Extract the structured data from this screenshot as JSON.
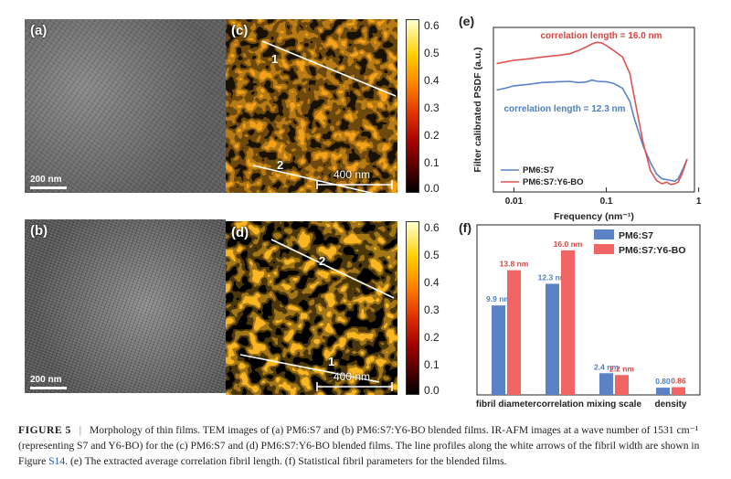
{
  "panels": {
    "a": {
      "label": "(a)",
      "scale": "200 nm"
    },
    "b": {
      "label": "(b)",
      "scale": "200 nm"
    },
    "c": {
      "label": "(c)",
      "line1": "1",
      "line2": "2",
      "scale": "400 nm"
    },
    "d": {
      "label": "(d)",
      "line1": "2",
      "line2": "1",
      "scale": "400 nm"
    },
    "e": {
      "label": "(e)"
    },
    "f": {
      "label": "(f)"
    }
  },
  "colorbar": {
    "ticks": [
      "0.6",
      "0.5",
      "0.4",
      "0.3",
      "0.2",
      "0.1",
      "0.0"
    ]
  },
  "colors": {
    "pm6s7": "#5b82c4",
    "pm6s7y6bo": "#e05252",
    "pm6s7_label": "#4f7fc2",
    "pm6s7y6bo_label": "#d9453f",
    "link": "#2454a6"
  },
  "chart_data": [
    {
      "type": "line",
      "panel": "(e)",
      "xlabel": "Frequency (nm⁻¹)",
      "ylabel": "Filter calibrated PSDF (a.u.)",
      "xscale": "log",
      "xlim": [
        0.006,
        0.9
      ],
      "xticks": [
        "0.01",
        "0.1",
        "1"
      ],
      "yticks": "none",
      "legend": "bottom-left",
      "annotations": [
        "correlation length = 16.0 nm",
        "correlation length = 12.3 nm"
      ],
      "series": [
        {
          "name": "PM6:S7",
          "color": "#5b82c4",
          "points": [
            [
              0.0065,
              0.62
            ],
            [
              0.008,
              0.63
            ],
            [
              0.01,
              0.645
            ],
            [
              0.015,
              0.655
            ],
            [
              0.02,
              0.665
            ],
            [
              0.03,
              0.67
            ],
            [
              0.04,
              0.672
            ],
            [
              0.05,
              0.665
            ],
            [
              0.06,
              0.668
            ],
            [
              0.07,
              0.68
            ],
            [
              0.08,
              0.672
            ],
            [
              0.1,
              0.67
            ],
            [
              0.12,
              0.66
            ],
            [
              0.15,
              0.63
            ],
            [
              0.18,
              0.55
            ],
            [
              0.2,
              0.45
            ],
            [
              0.25,
              0.28
            ],
            [
              0.3,
              0.18
            ],
            [
              0.35,
              0.11
            ],
            [
              0.4,
              0.08
            ],
            [
              0.45,
              0.075
            ],
            [
              0.5,
              0.07
            ],
            [
              0.55,
              0.065
            ],
            [
              0.6,
              0.08
            ],
            [
              0.65,
              0.12
            ],
            [
              0.7,
              0.16
            ],
            [
              0.75,
              0.2
            ]
          ]
        },
        {
          "name": "PM6:S7:Y6-BO",
          "color": "#e05252",
          "points": [
            [
              0.0065,
              0.78
            ],
            [
              0.008,
              0.79
            ],
            [
              0.01,
              0.8
            ],
            [
              0.015,
              0.81
            ],
            [
              0.02,
              0.82
            ],
            [
              0.03,
              0.83
            ],
            [
              0.04,
              0.84
            ],
            [
              0.05,
              0.86
            ],
            [
              0.06,
              0.88
            ],
            [
              0.07,
              0.9
            ],
            [
              0.08,
              0.91
            ],
            [
              0.09,
              0.905
            ],
            [
              0.1,
              0.89
            ],
            [
              0.12,
              0.86
            ],
            [
              0.15,
              0.82
            ],
            [
              0.18,
              0.72
            ],
            [
              0.2,
              0.58
            ],
            [
              0.25,
              0.3
            ],
            [
              0.3,
              0.13
            ],
            [
              0.35,
              0.07
            ],
            [
              0.4,
              0.05
            ],
            [
              0.45,
              0.06
            ],
            [
              0.5,
              0.045
            ],
            [
              0.55,
              0.05
            ],
            [
              0.6,
              0.06
            ],
            [
              0.65,
              0.1
            ],
            [
              0.7,
              0.15
            ],
            [
              0.75,
              0.2
            ]
          ]
        }
      ]
    },
    {
      "type": "bar",
      "panel": "(f)",
      "categories": [
        "fibril diameter",
        "correlation",
        "mixing scale",
        "density"
      ],
      "legend": "top-right",
      "yticks": "none",
      "series": [
        {
          "name": "PM6:S7",
          "color": "#5b82c4",
          "values": [
            9.9,
            12.3,
            2.4,
            0.8
          ],
          "labels": [
            "9.9 nm",
            "12.3 nm",
            "2.4 nm",
            "0.80"
          ]
        },
        {
          "name": "PM6:S7:Y6-BO",
          "color": "#f06464",
          "values": [
            13.8,
            16.0,
            2.2,
            0.86
          ],
          "labels": [
            "13.8 nm",
            "16.0 nm",
            "2.2 nm",
            "0.86"
          ]
        }
      ]
    }
  ],
  "caption": {
    "figno": "FIGURE 5",
    "sep": "|",
    "text_part1": "Morphology of thin films. TEM images of (a) PM6:S7 and (b) PM6:S7:Y6-BO blended films. IR-AFM images at a wave number of 1531 cm⁻¹ (representing S7 and Y6-BO) for the (c) PM6:S7 and (d) PM6:S7:Y6-BO blended films. The line profiles along the white arrows of the fibril width are shown in Figure ",
    "link": "S14",
    "text_part2": ". (e) The extracted average correlation fibril length. (f) Statistical fibril parameters for the blended films."
  }
}
